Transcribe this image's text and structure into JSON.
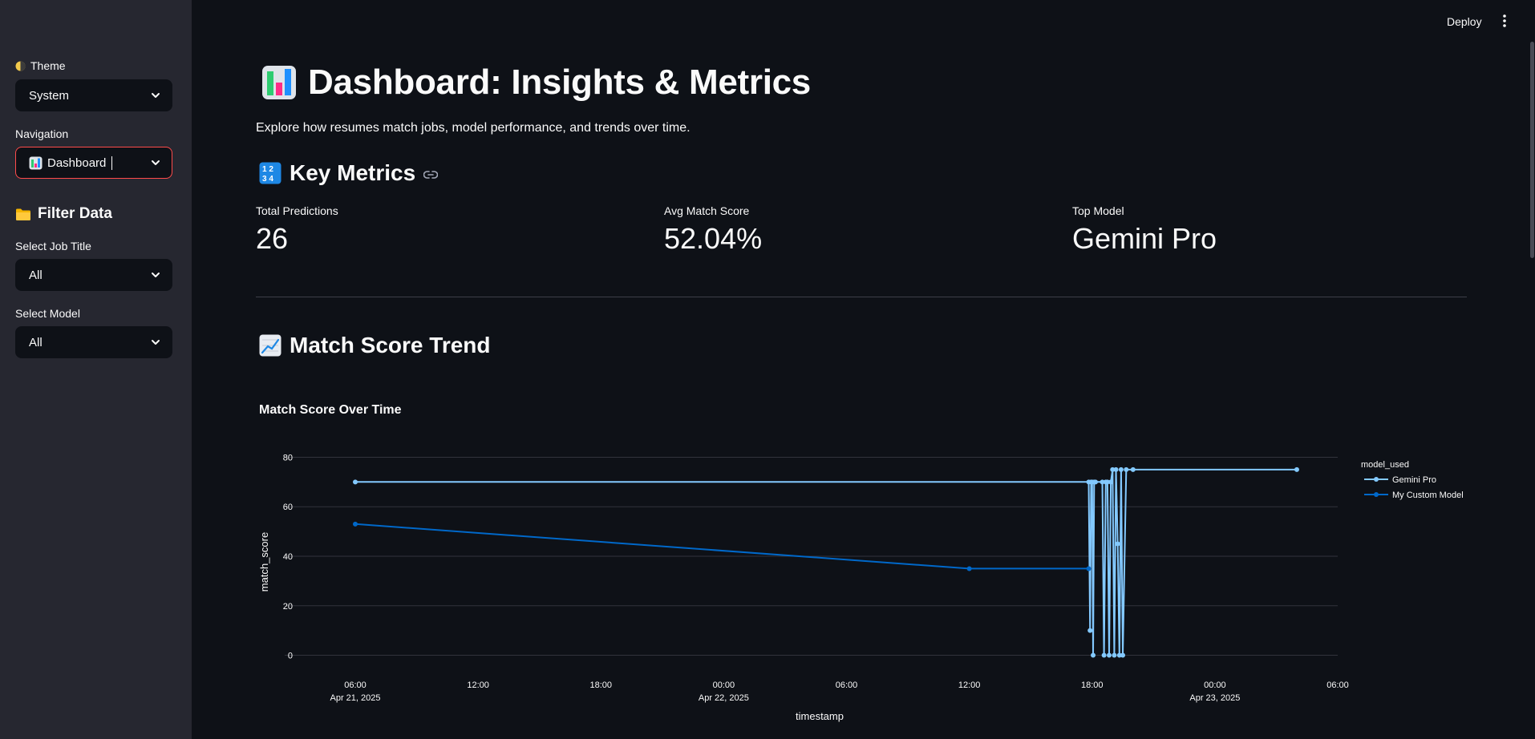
{
  "sidebar": {
    "theme_label": "Theme",
    "theme_value": "System",
    "nav_label": "Navigation",
    "nav_value": "Dashboard",
    "filter_heading": "Filter Data",
    "job_label": "Select Job Title",
    "job_value": "All",
    "model_label": "Select Model",
    "model_value": "All"
  },
  "header": {
    "deploy_label": "Deploy"
  },
  "main": {
    "title": "Dashboard: Insights & Metrics",
    "subtitle": "Explore how resumes match jobs, model performance, and trends over time.",
    "metrics_heading": "Key Metrics",
    "metrics": [
      {
        "label": "Total Predictions",
        "value": "26"
      },
      {
        "label": "Avg Match Score",
        "value": "52.04%"
      },
      {
        "label": "Top Model",
        "value": "Gemini Pro"
      }
    ],
    "trend_heading": "Match Score Trend"
  },
  "colors": {
    "accent": "#ff4b4b",
    "series_gemini": "#83c9ff",
    "series_custom": "#0068c9"
  },
  "chart_data": {
    "type": "line",
    "title": "Match Score Over Time",
    "xlabel": "timestamp",
    "ylabel": "match_score",
    "ylim": [
      -5,
      85
    ],
    "yticks": [
      0,
      20,
      40,
      60,
      80
    ],
    "xlim": [
      "2025-04-21 06:00",
      "2025-04-23 06:00"
    ],
    "xticks": [
      {
        "t": "2025-04-21 06:00",
        "line1": "06:00",
        "line2": "Apr 21, 2025"
      },
      {
        "t": "2025-04-21 12:00",
        "line1": "12:00",
        "line2": ""
      },
      {
        "t": "2025-04-21 18:00",
        "line1": "18:00",
        "line2": ""
      },
      {
        "t": "2025-04-22 00:00",
        "line1": "00:00",
        "line2": "Apr 22, 2025"
      },
      {
        "t": "2025-04-22 06:00",
        "line1": "06:00",
        "line2": ""
      },
      {
        "t": "2025-04-22 12:00",
        "line1": "12:00",
        "line2": ""
      },
      {
        "t": "2025-04-22 18:00",
        "line1": "18:00",
        "line2": ""
      },
      {
        "t": "2025-04-23 00:00",
        "line1": "00:00",
        "line2": "Apr 23, 2025"
      },
      {
        "t": "2025-04-23 06:00",
        "line1": "06:00",
        "line2": ""
      }
    ],
    "grid": true,
    "legend_title": "model_used",
    "legend_position": "right",
    "series": [
      {
        "name": "Gemini Pro",
        "color": "#83c9ff",
        "points": [
          [
            "2025-04-21 06:00",
            70
          ],
          [
            "2025-04-22 17:50",
            70
          ],
          [
            "2025-04-22 17:54",
            10
          ],
          [
            "2025-04-22 17:57",
            70
          ],
          [
            "2025-04-22 18:00",
            70
          ],
          [
            "2025-04-22 18:03",
            0
          ],
          [
            "2025-04-22 18:06",
            70
          ],
          [
            "2025-04-22 18:10",
            70
          ],
          [
            "2025-04-22 18:30",
            70
          ],
          [
            "2025-04-22 18:35",
            0
          ],
          [
            "2025-04-22 18:40",
            70
          ],
          [
            "2025-04-22 18:45",
            70
          ],
          [
            "2025-04-22 18:50",
            0
          ],
          [
            "2025-04-22 18:55",
            70
          ],
          [
            "2025-04-22 19:00",
            75
          ],
          [
            "2025-04-22 19:05",
            0
          ],
          [
            "2025-04-22 19:10",
            75
          ],
          [
            "2025-04-22 19:15",
            45
          ],
          [
            "2025-04-22 19:20",
            0
          ],
          [
            "2025-04-22 19:25",
            75
          ],
          [
            "2025-04-22 19:30",
            0
          ],
          [
            "2025-04-22 19:40",
            75
          ],
          [
            "2025-04-22 20:00",
            75
          ],
          [
            "2025-04-23 04:00",
            75
          ]
        ]
      },
      {
        "name": "My Custom Model",
        "color": "#0068c9",
        "points": [
          [
            "2025-04-21 06:00",
            53
          ],
          [
            "2025-04-22 12:00",
            35
          ],
          [
            "2025-04-22 17:50",
            35
          ]
        ]
      }
    ]
  }
}
